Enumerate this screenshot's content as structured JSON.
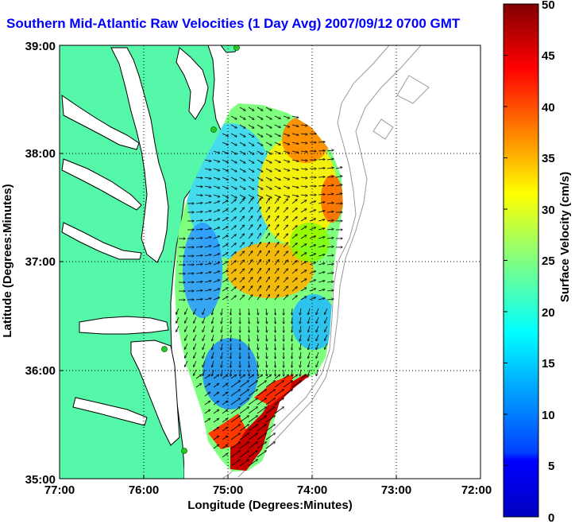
{
  "title": "Southern Mid-Atlantic Raw Velocities (1 Day Avg) 2007/09/12 0700 GMT",
  "colors": {
    "land": "#55f7a8",
    "water": "#ffffff",
    "coast": "#000000",
    "bathymetry": "#999999",
    "title": "#0000ff",
    "stations": "#22cc22"
  },
  "chart_data": {
    "type": "heatmap",
    "title": "Southern Mid-Atlantic Raw Velocities (1 Day Avg) 2007/09/12 0700 GMT",
    "xlabel": "Longitude (Degrees:Minutes)",
    "ylabel": "Latitude (Degrees:Minutes)",
    "x_ticks": [
      "77:00",
      "76:00",
      "75:00",
      "74:00",
      "73:00",
      "72:00"
    ],
    "x_values": [
      -77,
      -76,
      -75,
      -74,
      -73,
      -72
    ],
    "y_ticks": [
      "39:00",
      "38:00",
      "37:00",
      "36:00",
      "35:00"
    ],
    "y_values": [
      39,
      38,
      37,
      36,
      35
    ],
    "xlim": [
      -77,
      -72
    ],
    "ylim": [
      35,
      39
    ],
    "grid": true,
    "colorbar": {
      "label": "Surface Velocity (cm/s)",
      "range": [
        0,
        50
      ],
      "ticks": [
        "50",
        "45",
        "40",
        "35",
        "30",
        "25",
        "20",
        "15",
        "10",
        "5",
        "0"
      ],
      "colormap": "jet"
    },
    "stations": [
      {
        "lon": -75.1,
        "lat": 39.0
      },
      {
        "lon": -75.1,
        "lat": 38.23
      },
      {
        "lon": -75.75,
        "lat": 36.2
      },
      {
        "lon": -75.5,
        "lat": 35.27
      }
    ]
  }
}
